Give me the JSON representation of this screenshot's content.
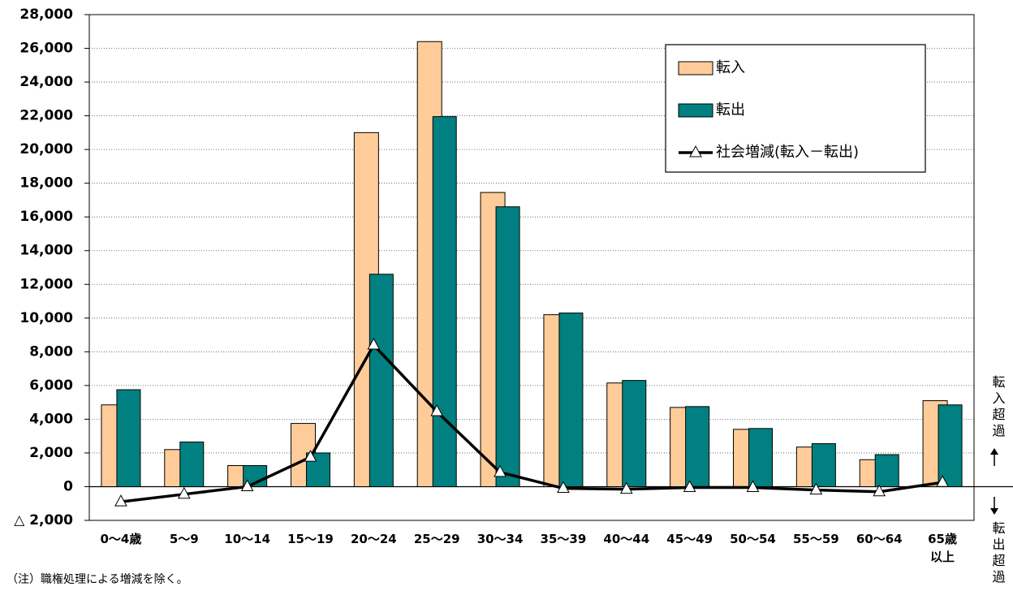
{
  "chart_data": {
    "type": "bar",
    "categories": [
      "0～4歳",
      "5～9",
      "10～14",
      "15～19",
      "20～24",
      "25～29",
      "30～34",
      "35～39",
      "40～44",
      "45～49",
      "50～54",
      "55～59",
      "60～64",
      "65歳\n以上"
    ],
    "series": [
      {
        "name": "転入",
        "type": "bar",
        "color": "#FFCC99",
        "values": [
          4850,
          2200,
          1250,
          3750,
          21000,
          26400,
          17450,
          10200,
          6150,
          4700,
          3400,
          2350,
          1600,
          5100
        ]
      },
      {
        "name": "転出",
        "type": "bar",
        "color": "#008080",
        "values": [
          5750,
          2650,
          1250,
          2000,
          12600,
          21950,
          16600,
          10300,
          6300,
          4750,
          3450,
          2550,
          1900,
          4850
        ]
      },
      {
        "name": "社会増減(転入－転出)",
        "type": "line",
        "color": "#000000",
        "values": [
          -900,
          -450,
          0,
          1750,
          8400,
          4450,
          850,
          -100,
          -150,
          -50,
          -50,
          -200,
          -300,
          250
        ]
      }
    ],
    "ylim": [
      -2000,
      28000
    ],
    "yticks": [
      {
        "value": -2000,
        "label": "△ 2,000"
      },
      0,
      {
        "value": 2000,
        "label": "2,000"
      },
      {
        "value": 4000,
        "label": "4,000"
      },
      {
        "value": 6000,
        "label": "6,000"
      },
      {
        "value": 8000,
        "label": "8,000"
      },
      {
        "value": 10000,
        "label": "10,000"
      },
      {
        "value": 12000,
        "label": "12,000"
      },
      {
        "value": 14000,
        "label": "14,000"
      },
      {
        "value": 16000,
        "label": "16,000"
      },
      {
        "value": 18000,
        "label": "18,000"
      },
      {
        "value": 20000,
        "label": "20,000"
      },
      {
        "value": 22000,
        "label": "22,000"
      },
      {
        "value": 24000,
        "label": "24,000"
      },
      {
        "value": 26000,
        "label": "26,000"
      },
      {
        "value": 28000,
        "label": "28,000"
      }
    ],
    "grid": true,
    "legend": "top-right",
    "annotations": {
      "inflow": "転入超過",
      "outflow": "転出超過"
    },
    "note": "（注）職権処理による増減を除く。"
  }
}
